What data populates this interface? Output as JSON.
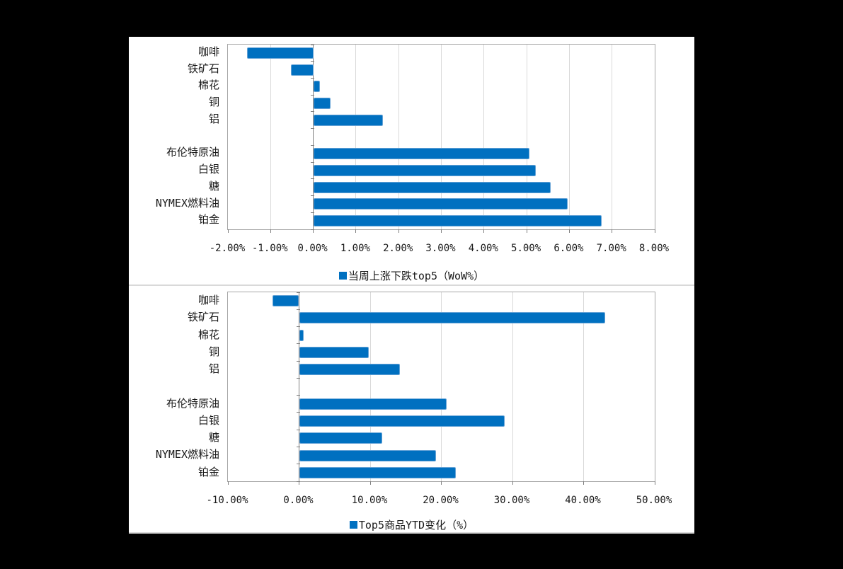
{
  "page": {
    "background_color": "#000000",
    "panel_background": "#ffffff"
  },
  "colors": {
    "bar": "#0070C0",
    "grid": "#d9d9d9",
    "axis": "#808080",
    "plot_border": "#a6a6a6",
    "separator": "#d9d9d9",
    "text": "#1a1a1a"
  },
  "chart_data": [
    {
      "type": "bar",
      "orientation": "horizontal",
      "legend": "当周上涨下跌top5（WoW%）",
      "legend_position": "bottom",
      "legend_swatch": "blue-square-icon",
      "unit": "%",
      "grid": true,
      "xlim": [
        -2,
        8
      ],
      "ticks": [
        -2,
        -1,
        0,
        1,
        2,
        3,
        4,
        5,
        6,
        7,
        8
      ],
      "tick_labels": [
        "-2.00%",
        "-1.00%",
        "0.00%",
        "1.00%",
        "2.00%",
        "3.00%",
        "4.00%",
        "5.00%",
        "6.00%",
        "7.00%",
        "8.00%"
      ],
      "categories": [
        "咖啡",
        "铁矿石",
        "棉花",
        "铜",
        "铝",
        "",
        "布伦特原油",
        "白银",
        "糖",
        "NYMEX燃料油",
        "铂金"
      ],
      "values": [
        -1.55,
        -0.53,
        0.15,
        0.41,
        1.64,
        null,
        5.07,
        5.22,
        5.57,
        5.96,
        6.75
      ]
    },
    {
      "type": "bar",
      "orientation": "horizontal",
      "legend": "Top5商品YTD变化（%）",
      "legend_position": "bottom",
      "legend_swatch": "blue-square-icon",
      "unit": "%",
      "grid": true,
      "xlim": [
        -10,
        50
      ],
      "ticks": [
        -10,
        0,
        10,
        20,
        30,
        40,
        50
      ],
      "tick_labels": [
        "-10.00%",
        "0.00%",
        "10.00%",
        "20.00%",
        "30.00%",
        "40.00%",
        "50.00%"
      ],
      "categories": [
        "咖啡",
        "铁矿石",
        "棉花",
        "铜",
        "铝",
        "",
        "布伦特原油",
        "白银",
        "糖",
        "NYMEX燃料油",
        "铂金"
      ],
      "values": [
        -3.7,
        43.0,
        0.6,
        9.8,
        14.2,
        null,
        20.7,
        28.9,
        11.7,
        19.3,
        22.0
      ]
    }
  ]
}
